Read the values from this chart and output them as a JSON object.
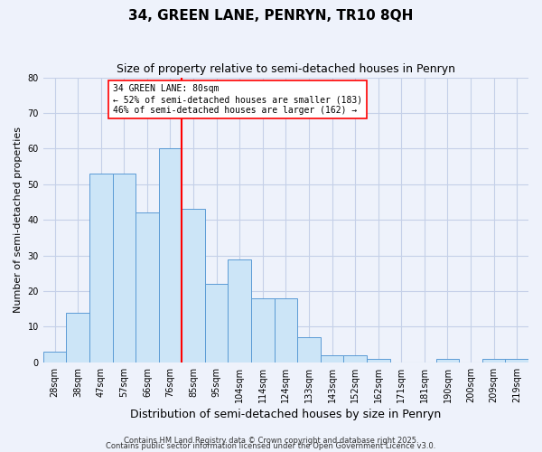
{
  "title": "34, GREEN LANE, PENRYN, TR10 8QH",
  "subtitle": "Size of property relative to semi-detached houses in Penryn",
  "xlabel": "Distribution of semi-detached houses by size in Penryn",
  "ylabel": "Number of semi-detached properties",
  "bar_labels": [
    "28sqm",
    "38sqm",
    "47sqm",
    "57sqm",
    "66sqm",
    "76sqm",
    "85sqm",
    "95sqm",
    "104sqm",
    "114sqm",
    "124sqm",
    "133sqm",
    "143sqm",
    "152sqm",
    "162sqm",
    "171sqm",
    "181sqm",
    "190sqm",
    "200sqm",
    "209sqm",
    "219sqm"
  ],
  "bar_heights": [
    3,
    14,
    53,
    53,
    42,
    60,
    43,
    22,
    29,
    18,
    18,
    7,
    2,
    2,
    1,
    0,
    0,
    1,
    0,
    1,
    1
  ],
  "bar_color": "#cce5f7",
  "bar_edge_color": "#5b9bd5",
  "reference_line_x_label": "76sqm",
  "reference_line_label": "34 GREEN LANE: 80sqm",
  "annotation_line1": "← 52% of semi-detached houses are smaller (183)",
  "annotation_line2": "46% of semi-detached houses are larger (162) →",
  "ref_line_color": "red",
  "background_color": "#eef2fb",
  "grid_color": "#c5d0e8",
  "ylim": [
    0,
    80
  ],
  "yticks": [
    0,
    10,
    20,
    30,
    40,
    50,
    60,
    70,
    80
  ],
  "footer1": "Contains HM Land Registry data © Crown copyright and database right 2025.",
  "footer2": "Contains public sector information licensed under the Open Government Licence v3.0.",
  "title_fontsize": 11,
  "subtitle_fontsize": 9,
  "xlabel_fontsize": 9,
  "ylabel_fontsize": 8,
  "tick_fontsize": 7,
  "footer_fontsize": 6
}
